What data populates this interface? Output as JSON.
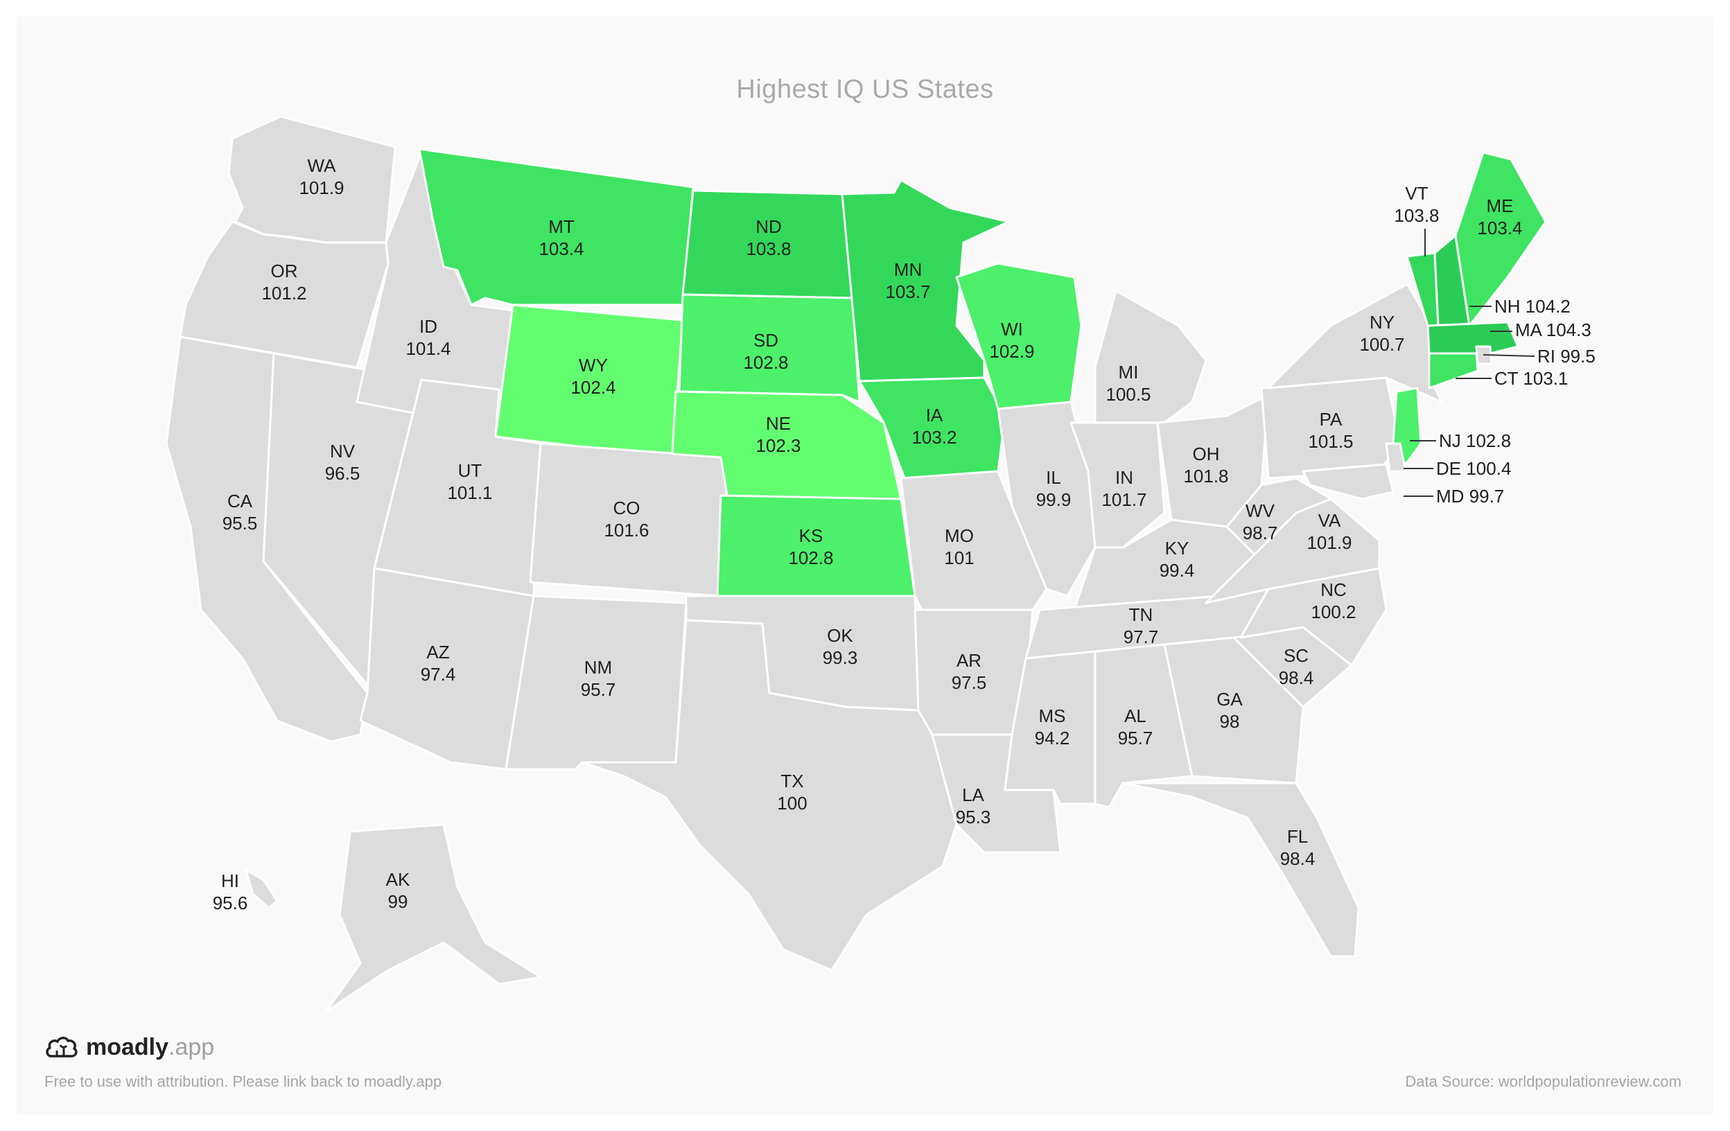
{
  "title": "Highest IQ US States",
  "brand": {
    "name": "moadly",
    "tld": ".app"
  },
  "attribution": "Free to use with attribution. Please link back to moadly.app",
  "source": "Data Source: worldpopulationreview.com",
  "colors": {
    "background": "#f9f9f9",
    "state_default": "#dcdcdc",
    "state_border": "#ffffff",
    "scale": [
      "#63fe70",
      "#4cf06a",
      "#3ee462",
      "#33d85a",
      "#2bcc55"
    ],
    "label": "#1f1f1f"
  },
  "chart_data": {
    "type": "choropleth",
    "title": "Highest IQ US States",
    "highlighted": [
      "MT",
      "ND",
      "MN",
      "WY",
      "SD",
      "WI",
      "NE",
      "IA",
      "KS",
      "VT",
      "ME",
      "NH",
      "MA",
      "CT",
      "NJ"
    ],
    "states": [
      {
        "code": "WA",
        "value": "101.9"
      },
      {
        "code": "OR",
        "value": "101.2"
      },
      {
        "code": "CA",
        "value": "95.5"
      },
      {
        "code": "NV",
        "value": "96.5"
      },
      {
        "code": "ID",
        "value": "101.4"
      },
      {
        "code": "MT",
        "value": "103.4"
      },
      {
        "code": "WY",
        "value": "102.4"
      },
      {
        "code": "UT",
        "value": "101.1"
      },
      {
        "code": "AZ",
        "value": "97.4"
      },
      {
        "code": "CO",
        "value": "101.6"
      },
      {
        "code": "NM",
        "value": "95.7"
      },
      {
        "code": "ND",
        "value": "103.8"
      },
      {
        "code": "SD",
        "value": "102.8"
      },
      {
        "code": "NE",
        "value": "102.3"
      },
      {
        "code": "KS",
        "value": "102.8"
      },
      {
        "code": "OK",
        "value": "99.3"
      },
      {
        "code": "TX",
        "value": "100"
      },
      {
        "code": "MN",
        "value": "103.7"
      },
      {
        "code": "IA",
        "value": "103.2"
      },
      {
        "code": "MO",
        "value": "101"
      },
      {
        "code": "AR",
        "value": "97.5"
      },
      {
        "code": "LA",
        "value": "95.3"
      },
      {
        "code": "WI",
        "value": "102.9"
      },
      {
        "code": "IL",
        "value": "99.9"
      },
      {
        "code": "MI",
        "value": "100.5"
      },
      {
        "code": "IN",
        "value": "101.7"
      },
      {
        "code": "OH",
        "value": "101.8"
      },
      {
        "code": "KY",
        "value": "99.4"
      },
      {
        "code": "TN",
        "value": "97.7"
      },
      {
        "code": "MS",
        "value": "94.2"
      },
      {
        "code": "AL",
        "value": "95.7"
      },
      {
        "code": "GA",
        "value": "98"
      },
      {
        "code": "FL",
        "value": "98.4"
      },
      {
        "code": "SC",
        "value": "98.4"
      },
      {
        "code": "NC",
        "value": "100.2"
      },
      {
        "code": "VA",
        "value": "101.9"
      },
      {
        "code": "WV",
        "value": "98.7"
      },
      {
        "code": "PA",
        "value": "101.5"
      },
      {
        "code": "NY",
        "value": "100.7"
      },
      {
        "code": "VT",
        "value": "103.8"
      },
      {
        "code": "NH",
        "value": "104.2"
      },
      {
        "code": "ME",
        "value": "103.4"
      },
      {
        "code": "MA",
        "value": "104.3"
      },
      {
        "code": "RI",
        "value": "99.5"
      },
      {
        "code": "CT",
        "value": "103.1"
      },
      {
        "code": "NJ",
        "value": "102.8"
      },
      {
        "code": "DE",
        "value": "100.4"
      },
      {
        "code": "MD",
        "value": "99.7"
      },
      {
        "code": "AK",
        "value": "99"
      },
      {
        "code": "HI",
        "value": "95.6"
      }
    ]
  }
}
